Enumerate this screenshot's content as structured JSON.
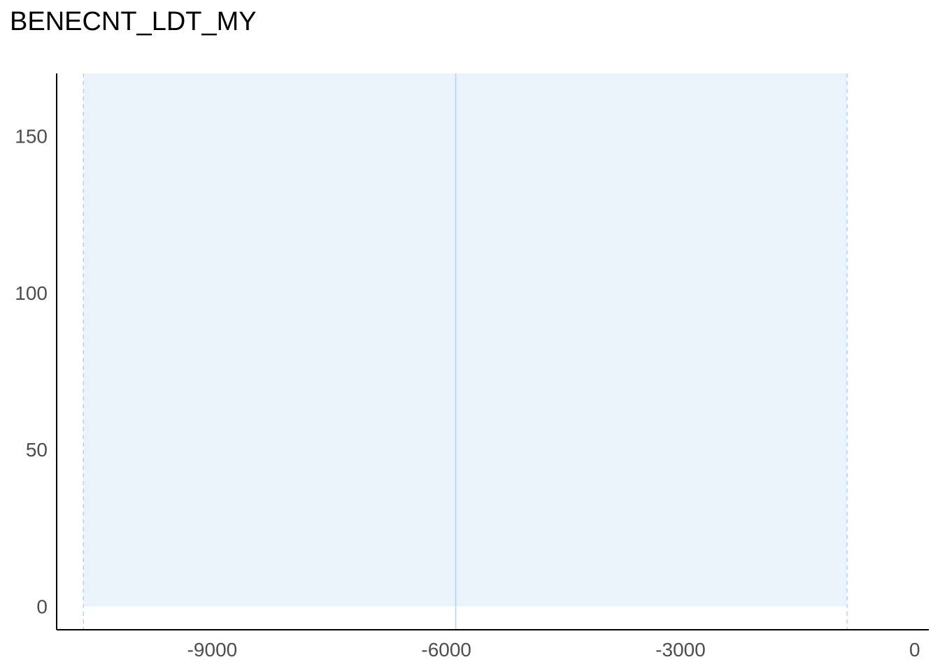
{
  "chart_data": {
    "type": "area",
    "title": "BENECNT_LDT_MY",
    "xlabel": "",
    "ylabel": "",
    "xlim": [
      -10993,
      181
    ],
    "ylim": [
      -7.5,
      170
    ],
    "x_ticks": [
      -9000,
      -6000,
      -3000,
      0
    ],
    "y_ticks": [
      0,
      50,
      100,
      150
    ],
    "shaded_region": {
      "x_start": -10650,
      "x_end": -866,
      "y_start": 0,
      "y_end": 170
    },
    "reference_lines": [
      {
        "name": "center",
        "x": -5880,
        "style": "solid"
      },
      {
        "name": "lower",
        "x": -10650,
        "style": "dashed"
      },
      {
        "name": "upper",
        "x": -866,
        "style": "dashed"
      }
    ],
    "grid": false,
    "colors": {
      "fill": "#eaf3fb",
      "line": "#b3d4ea",
      "axis": "#000000",
      "tick_text": "#4d4d4d"
    }
  }
}
